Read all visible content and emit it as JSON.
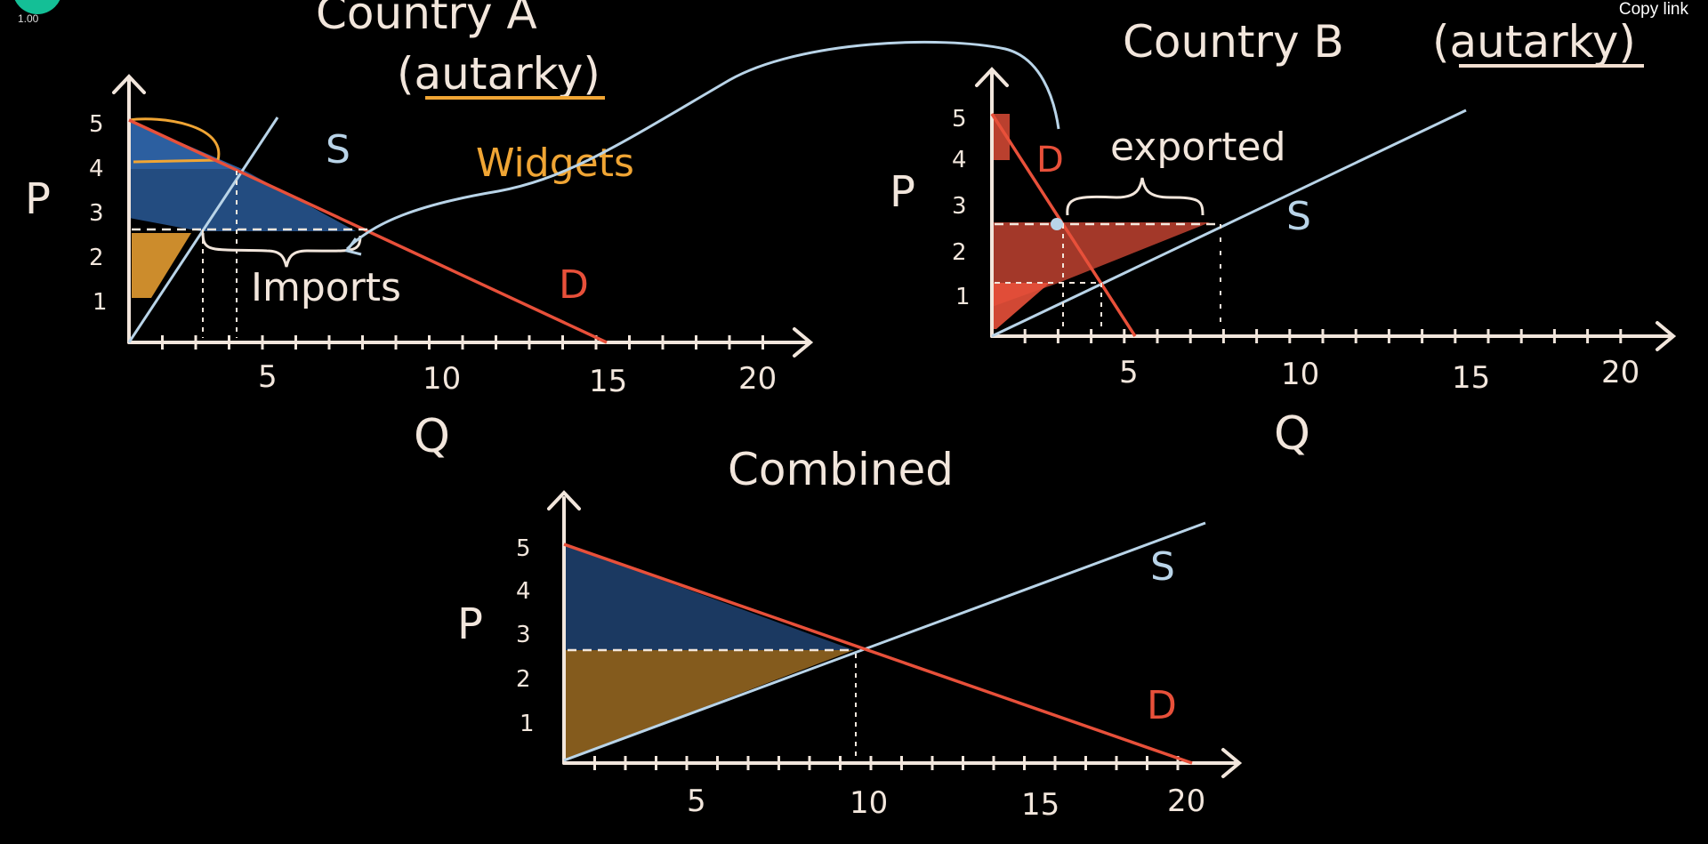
{
  "player": {
    "speed": "1.00",
    "copy_link": "Copy link"
  },
  "colors": {
    "background": "#000000",
    "chalk": "#f2e6dc",
    "supply": "#b9d4e8",
    "demand": "#e8503a",
    "orange": "#f0a534",
    "blue": "#3b7fd6",
    "red_fill": "#e8503a"
  },
  "labels": {
    "country_a": "Country A",
    "country_a_sub": "(autarky)",
    "country_b": "Country B",
    "country_b_sub": "(autarky)",
    "widgets": "Widgets",
    "imports": "Imports",
    "exported": "exported",
    "combined": "Combined",
    "p": "P",
    "q": "Q",
    "s": "S",
    "d": "D"
  },
  "chart_data": [
    {
      "type": "line",
      "title": "Country A",
      "subtitle": "(autarky)",
      "xlabel": "Q",
      "ylabel": "P",
      "xlim": [
        0,
        20
      ],
      "ylim": [
        0,
        5
      ],
      "x_ticks": [
        "5",
        "10",
        "15",
        "20"
      ],
      "y_ticks": [
        "1",
        "2",
        "3",
        "4",
        "5"
      ],
      "series": [
        {
          "name": "S",
          "points": [
            [
              0,
              0
            ],
            [
              4.5,
              5.2
            ]
          ]
        },
        {
          "name": "D",
          "points": [
            [
              0,
              5
            ],
            [
              15,
              0
            ]
          ]
        }
      ],
      "annotations": [
        "Widgets",
        "Imports"
      ]
    },
    {
      "type": "line",
      "title": "Country B",
      "subtitle": "(autarky)",
      "xlabel": "Q",
      "ylabel": "P",
      "xlim": [
        0,
        20
      ],
      "ylim": [
        0,
        5
      ],
      "x_ticks": [
        "5",
        "10",
        "15",
        "20"
      ],
      "y_ticks": [
        "1",
        "2",
        "3",
        "4",
        "5"
      ],
      "series": [
        {
          "name": "S",
          "points": [
            [
              0,
              0
            ],
            [
              15,
              5
            ]
          ]
        },
        {
          "name": "D",
          "points": [
            [
              0,
              5
            ],
            [
              5,
              0
            ]
          ]
        }
      ],
      "annotations": [
        "exported"
      ]
    },
    {
      "type": "line",
      "title": "Combined",
      "xlabel": "",
      "ylabel": "P",
      "xlim": [
        0,
        20
      ],
      "ylim": [
        0,
        5
      ],
      "x_ticks": [
        "5",
        "10",
        "15",
        "20"
      ],
      "y_ticks": [
        "1",
        "2",
        "3",
        "4",
        "5"
      ],
      "series": [
        {
          "name": "S",
          "points": [
            [
              0,
              0
            ],
            [
              21,
              5.5
            ]
          ]
        },
        {
          "name": "D",
          "points": [
            [
              0,
              5
            ],
            [
              20,
              0
            ]
          ]
        }
      ]
    }
  ]
}
